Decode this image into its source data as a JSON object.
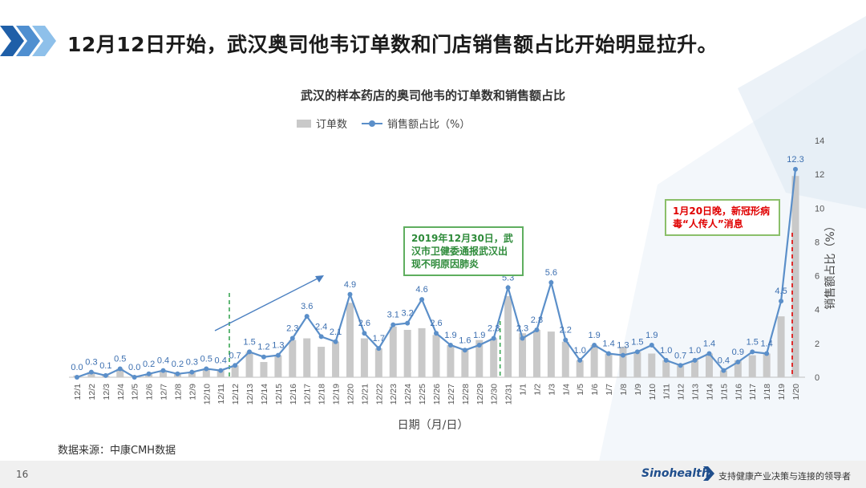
{
  "headline": "12月12日开始，武汉奥司他韦订单数和门店销售额占比开始明显拉升。",
  "source": "数据来源：中康CMH数据",
  "page_number": "16",
  "brand": "Sinohealth",
  "tagline": "支持健康产业决策与连接的领导者",
  "annotations": {
    "green_note": "2019年12月30日，武汉市卫健委通报武汉出现不明原因肺炎",
    "red_note": "1月20日晚，新冠形病毒“人传人”消息"
  },
  "colors": {
    "bar": "#c9c9c9",
    "line": "#5b8fc9",
    "green": "#3aa655",
    "red": "#e00000",
    "label": "#3c6fb0"
  },
  "chart_data": {
    "type": "bar+line",
    "title": "武汉的样本药店的奥司他韦的订单数和销售额占比",
    "xlabel": "日期（月/日）",
    "ylabel_right": "销售额占比（%）",
    "ylim_right": [
      0,
      14
    ],
    "yticks_right": [
      0,
      2,
      4,
      6,
      8,
      10,
      12,
      14
    ],
    "legend": [
      "订单数",
      "销售额占比（%）"
    ],
    "legend_position": "top",
    "categories": [
      "12/1",
      "12/2",
      "12/3",
      "12/4",
      "12/5",
      "12/6",
      "12/7",
      "12/8",
      "12/9",
      "12/10",
      "12/11",
      "12/12",
      "12/13",
      "12/14",
      "12/15",
      "12/16",
      "12/17",
      "12/18",
      "12/19",
      "12/20",
      "12/21",
      "12/22",
      "12/23",
      "12/24",
      "12/25",
      "12/26",
      "12/27",
      "12/28",
      "12/29",
      "12/30",
      "12/31",
      "1/1",
      "1/2",
      "1/3",
      "1/4",
      "1/5",
      "1/6",
      "1/7",
      "1/8",
      "1/9",
      "1/10",
      "1/11",
      "1/12",
      "1/13",
      "1/14",
      "1/15",
      "1/16",
      "1/17",
      "1/18",
      "1/19",
      "1/20"
    ],
    "series": [
      {
        "name": "订单数",
        "type": "bar",
        "values": [
          0.1,
          0.3,
          0.1,
          0.5,
          0.1,
          0.2,
          0.4,
          0.2,
          0.3,
          0.5,
          0.4,
          0.7,
          1.5,
          0.9,
          1.3,
          2.2,
          2.3,
          1.8,
          2.1,
          4.4,
          2.3,
          1.7,
          3.0,
          2.8,
          2.9,
          2.5,
          1.9,
          1.7,
          2.2,
          2.3,
          4.8,
          2.6,
          2.8,
          2.7,
          2.1,
          1.0,
          1.9,
          1.4,
          1.8,
          1.5,
          1.4,
          1.0,
          0.7,
          1.0,
          1.4,
          0.4,
          1.0,
          1.3,
          1.4,
          3.6,
          11.9
        ]
      },
      {
        "name": "销售额占比（%）",
        "type": "line",
        "values": [
          0.0,
          0.3,
          0.1,
          0.5,
          0.0,
          0.2,
          0.4,
          0.2,
          0.3,
          0.5,
          0.4,
          0.7,
          1.5,
          1.2,
          1.3,
          2.3,
          3.6,
          2.4,
          2.1,
          4.9,
          2.6,
          1.7,
          3.1,
          3.2,
          4.6,
          2.6,
          1.9,
          1.6,
          1.9,
          2.3,
          5.3,
          2.3,
          2.8,
          5.6,
          2.2,
          1.0,
          1.9,
          1.4,
          1.3,
          1.5,
          1.9,
          1.0,
          0.7,
          1.0,
          1.4,
          0.4,
          0.9,
          1.5,
          1.4,
          4.5,
          12.3
        ],
        "labels": [
          "0.0",
          "0.3",
          "0.1",
          "0.5",
          "0.0",
          "0.2",
          "0.4",
          "0.2",
          "0.3",
          "0.5",
          "0.4",
          "0.7",
          "1.5",
          "1.2",
          "1.3",
          "2.3",
          "3.6",
          "2.4",
          "2.1",
          "4.9",
          "2.6",
          "1.7",
          "3.1",
          "3.2",
          "4.6",
          "2.6",
          "1.9",
          "1.6",
          "1.9",
          "2.3",
          "5.3",
          "2.3",
          "2.8",
          "5.6",
          "2.2",
          "1.0",
          "1.9",
          "1.4",
          "1.3",
          "1.5",
          "1.9",
          "1.0",
          "0.7",
          "1.0",
          "1.4",
          "0.4",
          "0.9",
          "1.5",
          "1.4",
          "4.5",
          "12.3"
        ]
      }
    ],
    "markers": [
      {
        "type": "vline",
        "at": "12/12",
        "color": "green"
      },
      {
        "type": "vline",
        "at": "12/30",
        "color": "green"
      },
      {
        "type": "vline",
        "at": "1/20",
        "color": "red"
      },
      {
        "type": "trend-arrow",
        "from": "12/11",
        "to": "12/19"
      }
    ]
  }
}
